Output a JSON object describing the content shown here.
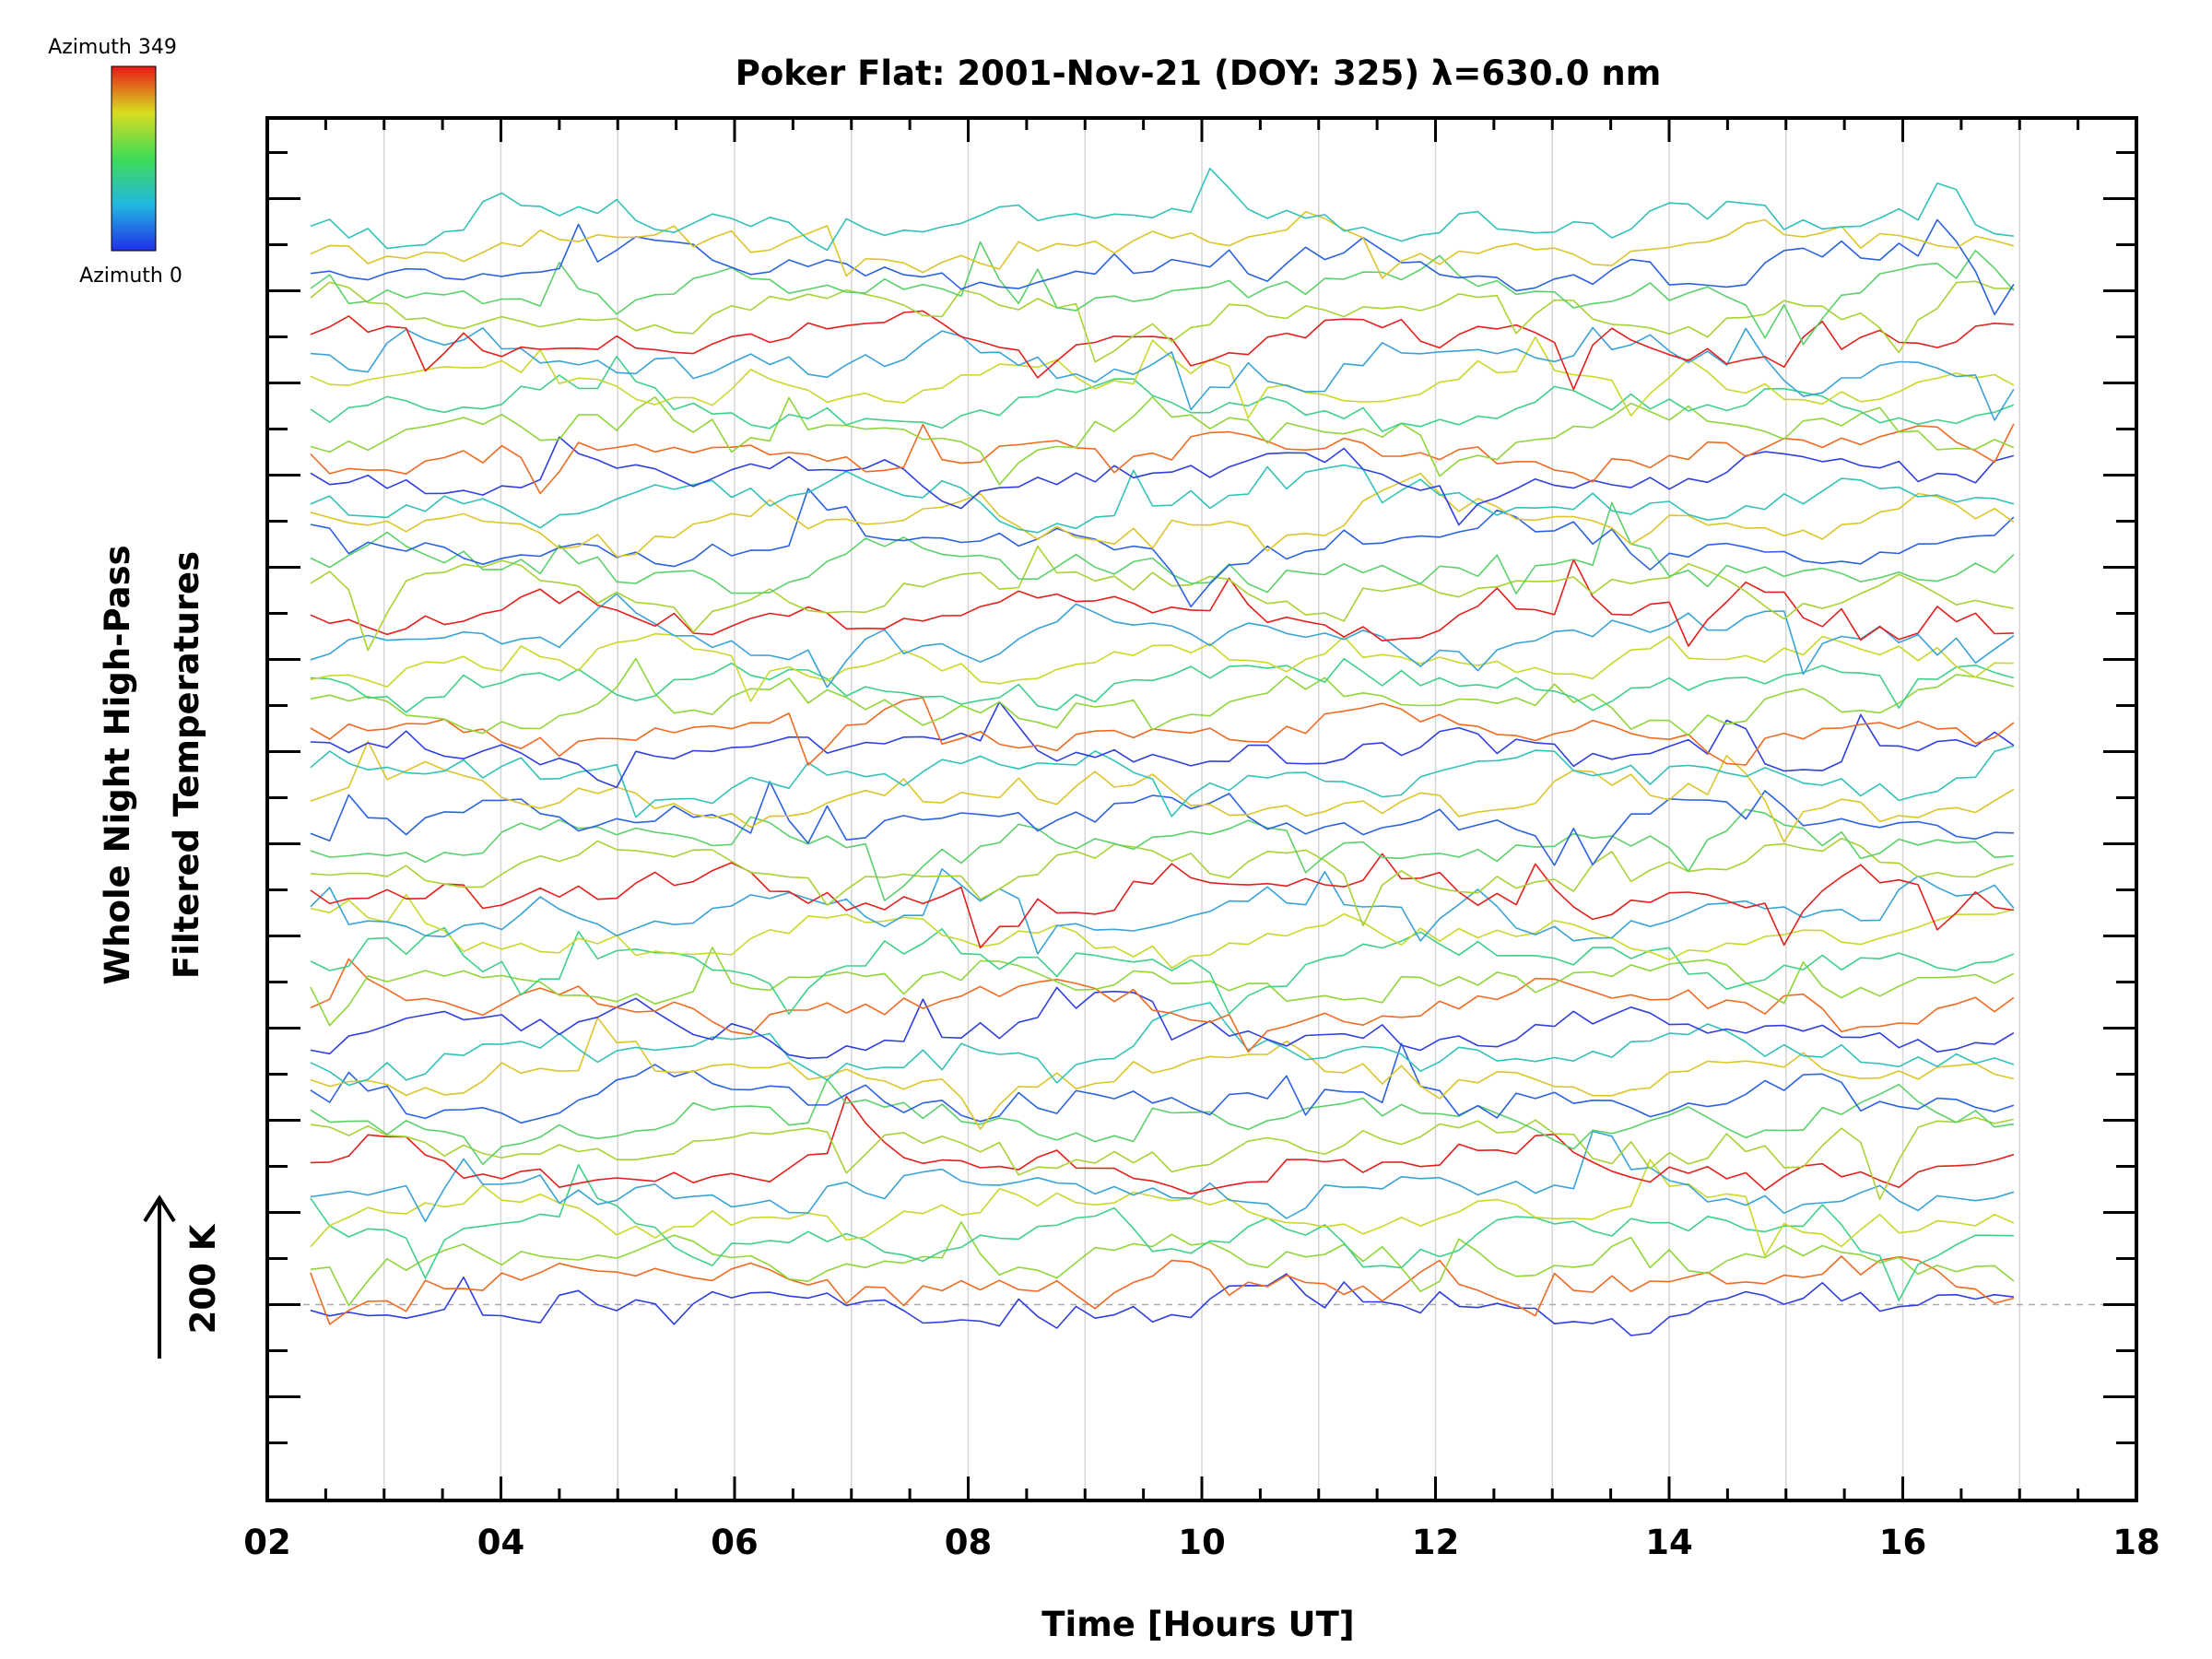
{
  "chart_data": {
    "type": "line",
    "title": "Poker Flat: 2001-Nov-21 (DOY: 325) λ=630.0 nm",
    "xlabel": "Time [Hours UT]",
    "ylabel_line1": "Whole Night High-Pass",
    "ylabel_line2": "Filtered Temperatures",
    "xlim": [
      2,
      18
    ],
    "x_ticks": [
      "02",
      "04",
      "06",
      "08",
      "10",
      "12",
      "14",
      "16",
      "18"
    ],
    "x_start": 2.37,
    "x_end": 16.95,
    "samples_per_trace": 90,
    "scale_bar": {
      "label": "200 K",
      "value": 200
    },
    "ylim_K": [
      -425,
      2575
    ],
    "trace_offset_K": 50,
    "num_traces": 48,
    "grid_vertical": true,
    "baseline_dashed": true,
    "colorbar": {
      "label_top": "Azimuth 349",
      "label_bottom": "Azimuth 0",
      "min": 0,
      "max": 349,
      "colormap": "blue-cyan-green-yellow-red"
    },
    "azimuth_cycle": [
      {
        "azimuth": 25,
        "color": "#2f3fe0"
      },
      {
        "azimuth": 300,
        "color": "#f06a22"
      },
      {
        "azimuth": 150,
        "color": "#8fd63a"
      },
      {
        "azimuth": 110,
        "color": "#3fd08a"
      },
      {
        "azimuth": 215,
        "color": "#c9d82a"
      },
      {
        "azimuth": 70,
        "color": "#3aa3d6"
      },
      {
        "azimuth": 345,
        "color": "#e3201b"
      },
      {
        "azimuth": 180,
        "color": "#a8d234"
      },
      {
        "azimuth": 130,
        "color": "#5bd16a"
      },
      {
        "azimuth": 45,
        "color": "#2b62e0"
      },
      {
        "azimuth": 240,
        "color": "#dcc52a"
      },
      {
        "azimuth": 90,
        "color": "#33c2b8"
      }
    ]
  }
}
